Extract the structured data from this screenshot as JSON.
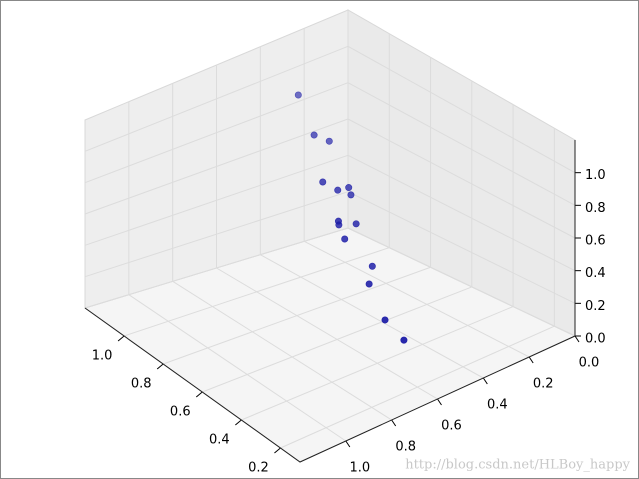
{
  "chart_data": {
    "type": "scatter3d",
    "x": [
      0.43,
      0.45,
      0.4,
      0.52,
      0.44,
      0.48,
      0.43,
      0.54,
      0.47,
      0.52,
      0.53,
      0.47,
      0.52,
      0.53,
      0.5
    ],
    "y": [
      0.98,
      0.88,
      0.86,
      0.76,
      0.72,
      0.73,
      0.72,
      0.66,
      0.65,
      0.68,
      0.64,
      0.57,
      0.53,
      0.44,
      0.38
    ],
    "z": [
      1.1,
      0.95,
      0.9,
      0.8,
      0.75,
      0.75,
      0.7,
      0.65,
      0.6,
      0.6,
      0.55,
      0.4,
      0.35,
      0.2,
      0.1
    ],
    "color": "#1a1aa6",
    "xlim": [
      0,
      1.2
    ],
    "ylim": [
      0.1,
      1.2
    ],
    "zlim": [
      0,
      1.2
    ],
    "xticks": [
      {
        "value": 0,
        "label": "0.0"
      },
      0.2,
      0.4,
      0.6,
      0.8,
      {
        "value": 1,
        "label": "1.0"
      }
    ],
    "yticks": [
      0.2,
      0.4,
      0.6,
      0.8,
      {
        "value": 1,
        "label": "1.0"
      }
    ],
    "zticks": [
      {
        "value": 0,
        "label": "0.0"
      },
      0.2,
      0.4,
      0.6,
      0.8,
      {
        "value": 1,
        "label": "1.0"
      }
    ],
    "grid": true,
    "watermark": "http://blog.csdn.net/HLBoy_happy"
  }
}
